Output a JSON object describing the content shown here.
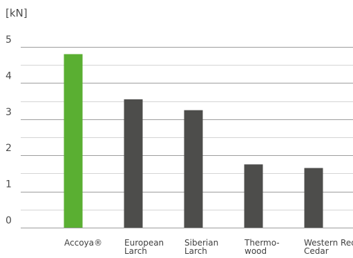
{
  "chart_data": {
    "type": "bar",
    "ylabel": "[kN]",
    "categories": [
      [
        "Accoya®"
      ],
      [
        "European",
        "Larch"
      ],
      [
        "Siberian",
        "Larch"
      ],
      [
        "Thermo-",
        "wood"
      ],
      [
        "Western Red",
        "Cedar"
      ]
    ],
    "values": [
      4.8,
      3.55,
      3.25,
      1.75,
      1.65
    ],
    "ylim": [
      0,
      5
    ],
    "yticks": [
      0,
      1,
      2,
      3,
      4,
      5
    ],
    "grid": true,
    "minor_grid": true,
    "colors": [
      "#5aaf32",
      "#4d4d4b",
      "#4d4d4b",
      "#4d4d4b",
      "#4d4d4b"
    ]
  }
}
